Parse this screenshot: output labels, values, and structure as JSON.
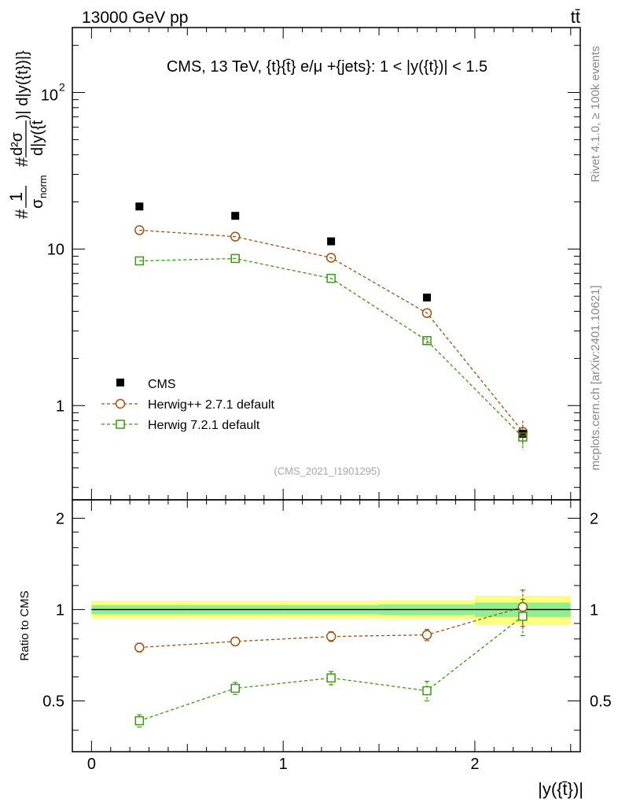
{
  "header": {
    "left": "13000 GeV pp",
    "right": "tt̄"
  },
  "side_texts": {
    "rivet": "Rivet 4.1.0, ≥ 100k events",
    "mcplots": "mcplots.cern.ch [arXiv:2401.10621]"
  },
  "chart_data": [
    {
      "type": "scatter",
      "panel": "main",
      "title": "CMS, 13 TeV, {t}{t̄} e/μ +{jets}: 1 < |y({t})| < 1.5",
      "watermark": "(CMS_2021_I1901295)",
      "ylabel_parts": [
        "#",
        "1",
        "σ",
        "norm",
        "#",
        "d²σ",
        ")| d|y({t})|}",
        "d|y({t̄"
      ],
      "yscale": "log",
      "ylim": [
        0.25,
        260
      ],
      "xlim": [
        -0.1,
        2.55
      ],
      "yticks": [
        1,
        10,
        100
      ],
      "ytick_labels": [
        "1",
        "10",
        "10",
        "2"
      ],
      "legend_position": "lower-left",
      "x": [
        0.25,
        0.75,
        1.25,
        1.75,
        2.25
      ],
      "series": [
        {
          "name": "CMS",
          "marker": "filled-square",
          "color": "#000000",
          "values": [
            18.7,
            16.3,
            11.2,
            4.9,
            0.66
          ]
        },
        {
          "name": "Herwig++ 2.7.1 default",
          "marker": "open-circle",
          "color": "#a0520f",
          "line": "dashed",
          "values": [
            13.2,
            12.0,
            8.8,
            3.9,
            0.68
          ],
          "errors": [
            0,
            0,
            0,
            0,
            0.12
          ]
        },
        {
          "name": "Herwig 7.2.1 default",
          "marker": "open-square",
          "color": "#3a9a10",
          "line": "dashed",
          "values": [
            8.4,
            8.7,
            6.5,
            2.6,
            0.63
          ],
          "errors": [
            0,
            0,
            0,
            0.12,
            0.11
          ]
        }
      ]
    },
    {
      "type": "line",
      "panel": "ratio",
      "ylabel": "Ratio to CMS",
      "xlabel": "|y({t̄})|",
      "ylim": [
        0.34,
        2.3
      ],
      "xlim": [
        -0.1,
        2.55
      ],
      "yticks": [
        0.5,
        1,
        2
      ],
      "ytick_labels": [
        "0.5",
        "1",
        "2"
      ],
      "xticks": [
        0,
        1,
        2
      ],
      "xtick_labels": [
        "0",
        "1",
        "2"
      ],
      "bands": {
        "edges": [
          0,
          0.5,
          1.0,
          1.5,
          2.0,
          2.5
        ],
        "outer_color": "#ffff80",
        "inner_color": "#90f090",
        "outer": [
          [
            0.935,
            1.07
          ],
          [
            0.935,
            1.07
          ],
          [
            0.935,
            1.07
          ],
          [
            0.93,
            1.075
          ],
          [
            0.89,
            1.11
          ]
        ],
        "inner": [
          [
            0.965,
            1.035
          ],
          [
            0.965,
            1.035
          ],
          [
            0.965,
            1.035
          ],
          [
            0.96,
            1.04
          ],
          [
            0.945,
            1.055
          ]
        ]
      },
      "x": [
        0.25,
        0.75,
        1.25,
        1.75,
        2.25
      ],
      "series": [
        {
          "name": "Herwig++ 2.7.1 default",
          "marker": "open-circle",
          "color": "#a0520f",
          "line": "dashed",
          "values": [
            0.75,
            0.785,
            0.815,
            0.825,
            1.02
          ],
          "errors": [
            0.025,
            0.025,
            0.03,
            0.035,
            0.14
          ]
        },
        {
          "name": "Herwig 7.2.1 default",
          "marker": "open-square",
          "color": "#3a9a10",
          "line": "dashed",
          "values": [
            0.43,
            0.55,
            0.595,
            0.54,
            0.95
          ],
          "errors": [
            0.02,
            0.025,
            0.03,
            0.04,
            0.13
          ]
        }
      ]
    }
  ]
}
